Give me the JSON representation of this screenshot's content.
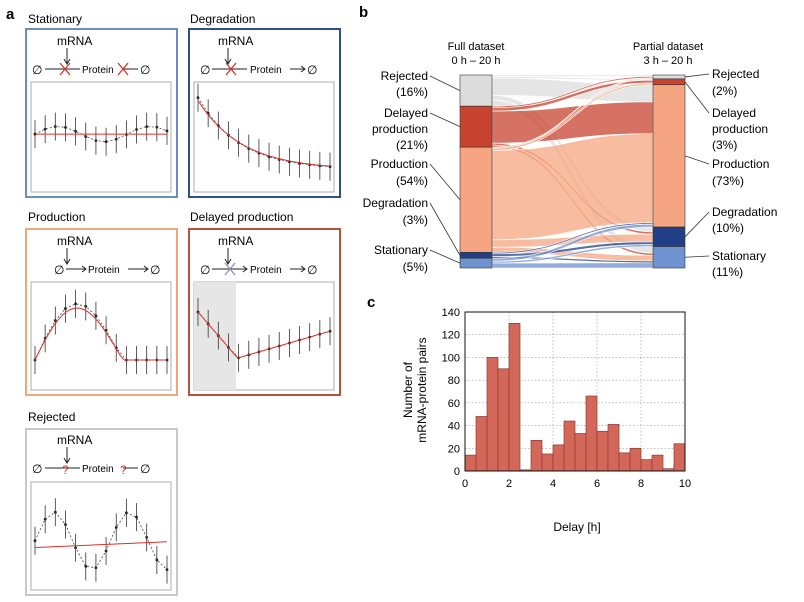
{
  "panel_labels": {
    "a": "a",
    "b": "b",
    "c": "c"
  },
  "panel_a": {
    "mrna_label": "mRNA",
    "protein_label": "Protein",
    "empty_symbol": "∅",
    "models": [
      {
        "title": "Stationary",
        "frame_color": "#6a8fbf"
      },
      {
        "title": "Degradation",
        "frame_color": "#2e4f8c"
      },
      {
        "title": "Production",
        "frame_color": "#f0a77e"
      },
      {
        "title": "Delayed production",
        "frame_color": "#b8503a"
      },
      {
        "title": "Rejected",
        "frame_color": "#c9c9c9"
      }
    ]
  },
  "panel_b": {
    "left_header": [
      "Full dataset",
      "0 h – 20 h"
    ],
    "right_header": [
      "Partial dataset",
      "3 h – 20 h"
    ],
    "left_categories": [
      {
        "name": "Rejected",
        "pct": "(16%)",
        "value": 16,
        "color": "#dcdcdc"
      },
      {
        "name": "Delayed production",
        "pct": "(21%)",
        "value": 21,
        "color": "#c8432f"
      },
      {
        "name": "Production",
        "pct": "(54%)",
        "value": 54,
        "color": "#f5a582"
      },
      {
        "name": "Degradation",
        "pct": "(3%)",
        "value": 3,
        "color": "#203f86"
      },
      {
        "name": "Stationary",
        "pct": "(5%)",
        "value": 5,
        "color": "#6f93d0"
      }
    ],
    "right_categories": [
      {
        "name": "Rejected",
        "pct": "(2%)",
        "value": 2,
        "color": "#dcdcdc"
      },
      {
        "name": "Delayed production",
        "pct": "(3%)",
        "value": 3,
        "color": "#c8432f"
      },
      {
        "name": "Production",
        "pct": "(73%)",
        "value": 73,
        "color": "#f5a582"
      },
      {
        "name": "Degradation",
        "pct": "(10%)",
        "value": 10,
        "color": "#203f86"
      },
      {
        "name": "Stationary",
        "pct": "(11%)",
        "value": 11,
        "color": "#6f93d0"
      }
    ]
  },
  "chart_data": {
    "type": "bar",
    "x": [
      0.25,
      0.75,
      1.25,
      1.75,
      2.25,
      2.75,
      3.25,
      3.75,
      4.25,
      4.75,
      5.25,
      5.75,
      6.25,
      6.75,
      7.25,
      7.75,
      8.25,
      8.75,
      9.25,
      9.75
    ],
    "values": [
      14,
      48,
      100,
      90,
      130,
      1,
      27,
      15,
      23,
      44,
      33,
      66,
      35,
      41,
      16,
      20,
      10,
      14,
      2,
      6
    ],
    "extra_bars": [
      {
        "x": 9.75,
        "value": 24
      }
    ],
    "xlabel": "Delay [h]",
    "ylabel": [
      "Number of",
      "mRNA-protein pairs"
    ],
    "xlim": [
      0,
      10
    ],
    "ylim": [
      0,
      140
    ],
    "xticks": [
      0,
      2,
      4,
      6,
      8,
      10
    ],
    "yticks": [
      0,
      20,
      40,
      60,
      80,
      100,
      120,
      140
    ],
    "grid": true,
    "bar_color": "#d3685a"
  }
}
